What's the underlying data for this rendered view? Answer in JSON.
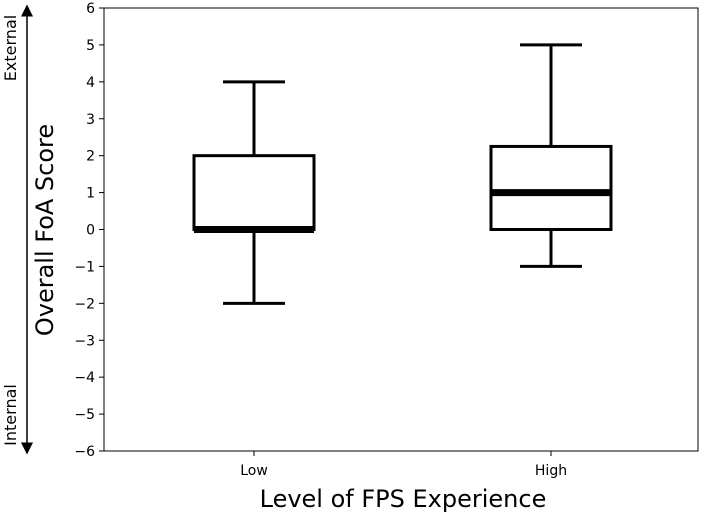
{
  "chart_data": {
    "type": "box",
    "title": "",
    "xlabel": "Level of FPS Experience",
    "ylabel": "Overall FoA Score",
    "ylim": [
      -6,
      6
    ],
    "yticks": [
      6,
      5,
      4,
      3,
      2,
      1,
      0,
      -1,
      -2,
      -3,
      -4,
      -5,
      -6
    ],
    "ytick_labels": [
      "6",
      "5",
      "4",
      "3",
      "2",
      "1",
      "0",
      "−1",
      "−2",
      "−3",
      "−4",
      "−5",
      "−6"
    ],
    "categories": [
      "Low",
      "High"
    ],
    "boxes": [
      {
        "category": "Low",
        "whisker_low": -2,
        "q1": 0,
        "median": 0,
        "q3": 2,
        "whisker_high": 4
      },
      {
        "category": "High",
        "whisker_low": -1,
        "q1": 0,
        "median": 1,
        "q3": 2.25,
        "whisker_high": 5
      }
    ],
    "grid": false,
    "side_labels": {
      "top": "External",
      "bottom": "Internal"
    },
    "colors": {
      "box_line": "#000000",
      "median": "#000000",
      "background": "#ffffff"
    }
  }
}
